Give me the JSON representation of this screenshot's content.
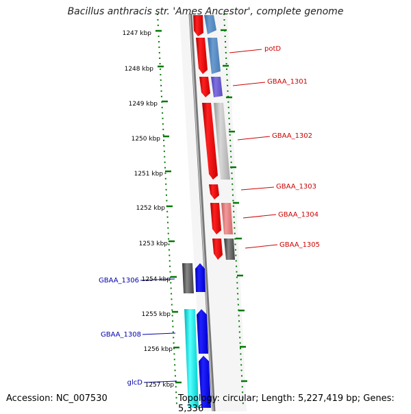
{
  "title": "Bacillus anthracis str. 'Ames Ancestor', complete genome",
  "accession_text": "Accession: NC_007530",
  "stats_text": "Topology: circular; Length: 5,227,419 bp; Genes: 5,336",
  "ruler_labels": [
    "1247 kbp",
    "1248 kbp",
    "1249 kbp",
    "1250 kbp",
    "1251 kbp",
    "1252 kbp",
    "1253 kbp",
    "1254 kbp",
    "1255 kbp",
    "1256 kbp",
    "1257 kbp"
  ],
  "right_gene_labels": [
    "potD",
    "GBAA_1301",
    "GBAA_1302",
    "GBAA_1303",
    "GBAA_1304",
    "GBAA_1305"
  ],
  "left_gene_labels": [
    "GBAA_1306",
    "GBAA_1308",
    "glcD"
  ],
  "colors": {
    "forward_strand": "#ff0000",
    "reverse_strand": "#0000ff",
    "label_red": "#cc0000",
    "label_blue": "#0000aa",
    "tick_green": "#007700",
    "backbone": "#777777",
    "cyan": "#00e5e5",
    "dark_gray": "#555555",
    "steel_blue": "#4f85c0",
    "slate_blue": "#6a5acd",
    "light_gray": "#bbbbbb",
    "salmon": "#e87878"
  }
}
